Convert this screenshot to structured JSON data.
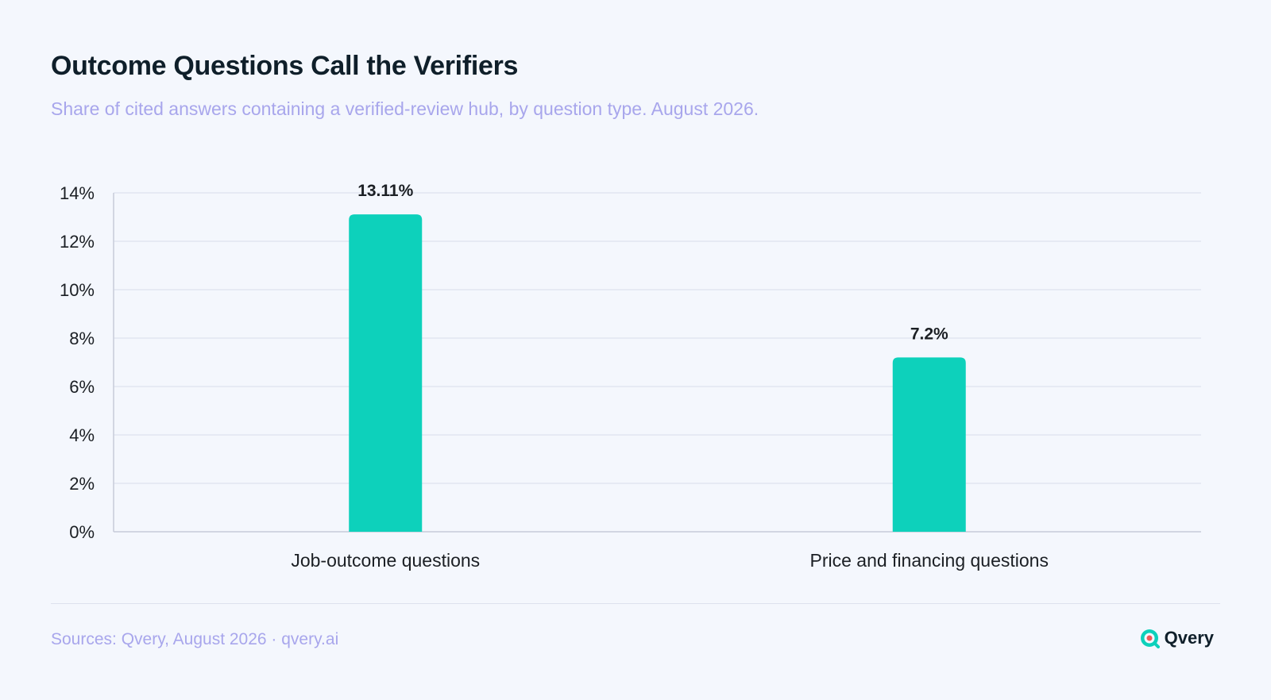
{
  "header": {
    "title": "Outcome Questions Call the Verifiers",
    "subtitle": "Share of cited answers containing a verified-review hub, by question type. August 2026."
  },
  "chart_data": {
    "type": "bar",
    "categories": [
      "Job-outcome questions",
      "Price and financing questions"
    ],
    "values": [
      13.11,
      7.2
    ],
    "value_labels": [
      "13.11%",
      "7.2%"
    ],
    "ylim": [
      0,
      14
    ],
    "yticks": [
      0,
      2,
      4,
      6,
      8,
      10,
      12,
      14
    ],
    "ytick_labels": [
      "0%",
      "2%",
      "4%",
      "6%",
      "8%",
      "10%",
      "12%",
      "14%"
    ],
    "xlabel": "",
    "ylabel": "",
    "grid": true,
    "legend": "none",
    "bar_color": "#0dd1bb",
    "grid_color": "#dde2ee",
    "axis_color": "#c7ccd9"
  },
  "footer": {
    "source": "Sources: Qvery, August 2026 · qvery.ai",
    "brand": "Qvery",
    "brand_icon": "qvery-logo-icon"
  }
}
